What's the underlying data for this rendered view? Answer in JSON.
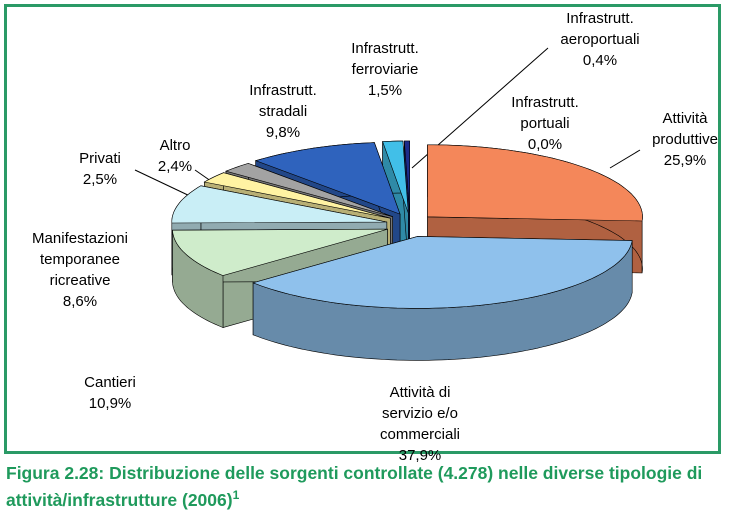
{
  "chart_data": {
    "type": "pie",
    "title": "Figura 2.28: Distribuzione delle sorgenti controllate (4.278) nelle diverse tipologie di attività/infrastrutture (2006)",
    "title_note": "1",
    "categories": [
      "Attività\nproduttive",
      "Attività di\nservizio e/o\ncommerciali",
      "Cantieri",
      "Manifestazioni\ntemporanee\nricreative",
      "Privati",
      "Altro",
      "Infrastrutt.\nstradali",
      "Infrastrutt.\nferroviarie",
      "Infrastrutt.\naeroportuali",
      "Infrastrutt.\nportuali"
    ],
    "values": [
      25.9,
      37.9,
      10.9,
      8.6,
      2.5,
      2.4,
      9.8,
      1.5,
      0.4,
      0.0
    ],
    "value_labels": [
      "25,9%",
      "37,9%",
      "10,9%",
      "8,6%",
      "2,5%",
      "2,4%",
      "9,8%",
      "1,5%",
      "0,4%",
      "0,0%"
    ],
    "colors": [
      "#f4875a",
      "#8fc1ec",
      "#cfeccb",
      "#c9eef6",
      "#fff3a3",
      "#a3a3a3",
      "#2f63bd",
      "#41bfe8",
      "#1c2c8a",
      "#6f3fa0"
    ]
  }
}
